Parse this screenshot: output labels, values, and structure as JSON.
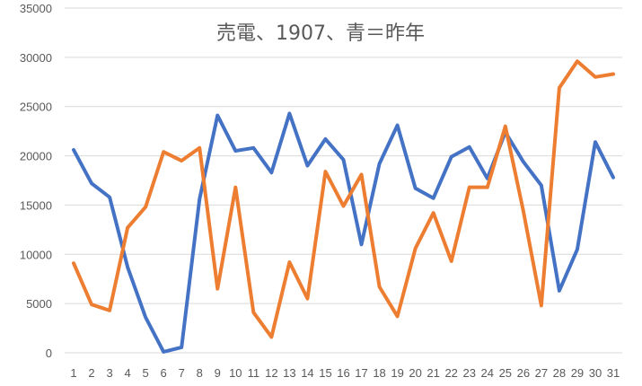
{
  "chart_data": {
    "type": "line",
    "title": "売電、1907、青＝昨年",
    "xlabel": "",
    "ylabel": "",
    "categories": [
      "1",
      "2",
      "3",
      "4",
      "5",
      "6",
      "7",
      "8",
      "9",
      "10",
      "11",
      "12",
      "13",
      "14",
      "15",
      "16",
      "17",
      "18",
      "19",
      "20",
      "21",
      "22",
      "23",
      "24",
      "25",
      "26",
      "27",
      "28",
      "29",
      "30",
      "31"
    ],
    "ylim": [
      0,
      35000
    ],
    "yticks": [
      "0",
      "5000",
      "10000",
      "15000",
      "20000",
      "25000",
      "30000",
      "35000"
    ],
    "grid": true,
    "legend": "none",
    "series": [
      {
        "color": "#4472C4",
        "values": [
          20600,
          17200,
          15800,
          8700,
          3600,
          100,
          550,
          15600,
          24100,
          20500,
          20800,
          18300,
          24300,
          19000,
          21700,
          19600,
          11000,
          19200,
          23100,
          16700,
          15700,
          19900,
          20900,
          17700,
          22400,
          19400,
          17000,
          6300,
          10500,
          21400,
          17800
        ]
      },
      {
        "color": "#ED7D31",
        "values": [
          9100,
          4900,
          4300,
          12700,
          14800,
          20400,
          19500,
          20800,
          6500,
          16800,
          4100,
          1600,
          9200,
          5500,
          18400,
          14900,
          18100,
          6700,
          3700,
          10600,
          14200,
          9300,
          16800,
          16800,
          23000,
          14400,
          4800,
          26900,
          29600,
          28000,
          28300
        ]
      }
    ]
  }
}
